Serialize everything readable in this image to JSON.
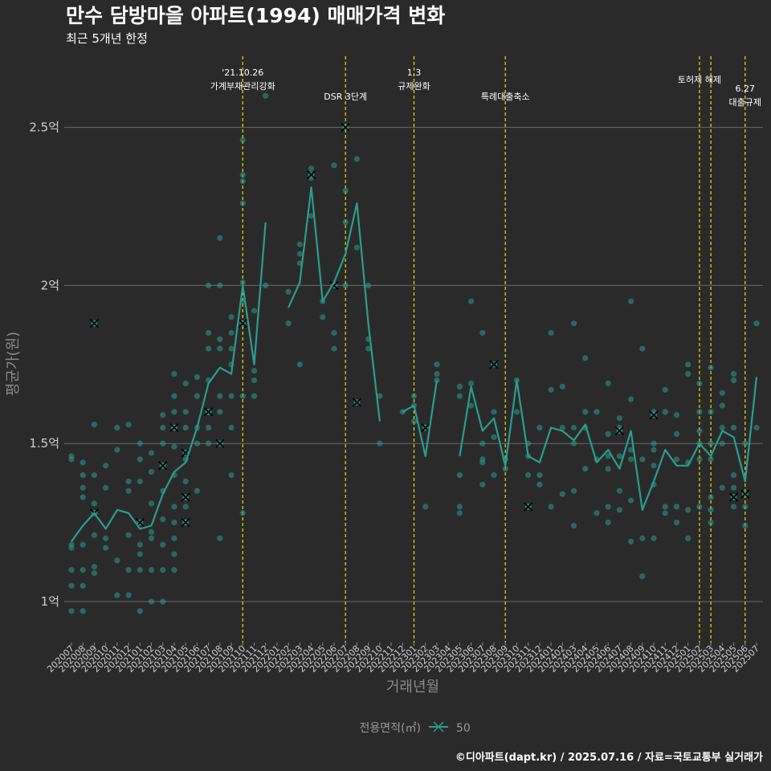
{
  "chart_data": {
    "type": "line",
    "title": "만수 담방마을 아파트(1994) 매매가격 변화",
    "subtitle": "최근 5개년 한정",
    "xlabel": "거래년월",
    "ylabel": "평균가(원)",
    "caption": "©디아파트(dapt.kr) / 2025.07.16 / 자료=국토교통부 실거래가",
    "legend": {
      "title": "전용면적(㎡)",
      "label": "50",
      "position": "bottom"
    },
    "colors": {
      "background": "#2b2a2b",
      "series": "#2a9d8f",
      "grid": "#6a6a6a",
      "event_line": "#e8e000",
      "outlier_marker": "#000000"
    },
    "ylim": [
      0.88,
      2.66
    ],
    "yticks": [
      {
        "value": 1.0,
        "label": "1억"
      },
      {
        "value": 1.5,
        "label": "1.5억"
      },
      {
        "value": 2.0,
        "label": "2억"
      },
      {
        "value": 2.5,
        "label": "2.5억"
      }
    ],
    "x": [
      "202007",
      "202008",
      "202009",
      "202010",
      "202011",
      "202012",
      "202101",
      "202102",
      "202103",
      "202104",
      "202105",
      "202106",
      "202107",
      "202108",
      "202109",
      "202110",
      "202111",
      "202112",
      "202201",
      "202202",
      "202203",
      "202204",
      "202205",
      "202206",
      "202207",
      "202208",
      "202209",
      "202210",
      "202211",
      "202212",
      "202301",
      "202302",
      "202303",
      "202304",
      "202305",
      "202306",
      "202307",
      "202308",
      "202309",
      "202310",
      "202311",
      "202312",
      "202401",
      "202402",
      "202403",
      "202404",
      "202405",
      "202406",
      "202407",
      "202408",
      "202409",
      "202410",
      "202411",
      "202412",
      "202501",
      "202502",
      "202503",
      "202504",
      "202505",
      "202506",
      "202507"
    ],
    "series": [
      {
        "name": "50",
        "values": [
          1.19,
          1.24,
          1.28,
          1.23,
          1.29,
          1.28,
          1.23,
          1.24,
          1.34,
          1.41,
          1.44,
          1.55,
          1.69,
          1.74,
          1.72,
          2.0,
          1.75,
          2.2,
          null,
          1.93,
          2.01,
          2.31,
          1.95,
          2.01,
          2.1,
          2.26,
          1.88,
          1.57,
          null,
          1.6,
          1.62,
          1.46,
          1.7,
          null,
          1.46,
          1.68,
          1.54,
          1.58,
          1.43,
          1.7,
          1.46,
          1.44,
          1.55,
          1.54,
          1.51,
          1.56,
          1.44,
          1.48,
          1.42,
          1.54,
          1.29,
          1.38,
          1.48,
          1.43,
          1.43,
          1.5,
          1.46,
          1.54,
          1.52,
          1.38,
          1.71
        ]
      }
    ],
    "scatter_points": [
      [
        "202007",
        1.17
      ],
      [
        "202007",
        1.1
      ],
      [
        "202007",
        0.97
      ],
      [
        "202007",
        1.05
      ],
      [
        "202007",
        1.18
      ],
      [
        "202007",
        1.45
      ],
      [
        "202007",
        1.46
      ],
      [
        "202008",
        1.4
      ],
      [
        "202008",
        1.36
      ],
      [
        "202008",
        1.44
      ],
      [
        "202008",
        1.18
      ],
      [
        "202008",
        1.1
      ],
      [
        "202008",
        0.97
      ],
      [
        "202008",
        1.05
      ],
      [
        "202008",
        1.33
      ],
      [
        "202009",
        1.56
      ],
      [
        "202009",
        1.4
      ],
      [
        "202009",
        1.31
      ],
      [
        "202009",
        1.21
      ],
      [
        "202009",
        1.11
      ],
      [
        "202009",
        1.09
      ],
      [
        "202010",
        1.43
      ],
      [
        "202010",
        1.36
      ],
      [
        "202010",
        1.2
      ],
      [
        "202010",
        1.17
      ],
      [
        "202011",
        1.55
      ],
      [
        "202011",
        1.48
      ],
      [
        "202011",
        1.13
      ],
      [
        "202011",
        1.02
      ],
      [
        "202012",
        1.56
      ],
      [
        "202012",
        1.38
      ],
      [
        "202012",
        1.35
      ],
      [
        "202012",
        1.21
      ],
      [
        "202012",
        1.1
      ],
      [
        "202012",
        1.02
      ],
      [
        "202101",
        1.5
      ],
      [
        "202101",
        1.45
      ],
      [
        "202101",
        1.38
      ],
      [
        "202101",
        1.25
      ],
      [
        "202101",
        1.18
      ],
      [
        "202101",
        1.15
      ],
      [
        "202101",
        1.1
      ],
      [
        "202101",
        0.97
      ],
      [
        "202102",
        1.47
      ],
      [
        "202102",
        1.41
      ],
      [
        "202102",
        1.31
      ],
      [
        "202102",
        1.22
      ],
      [
        "202102",
        1.2
      ],
      [
        "202102",
        1.1
      ],
      [
        "202102",
        1.0
      ],
      [
        "202103",
        1.59
      ],
      [
        "202103",
        1.55
      ],
      [
        "202103",
        1.5
      ],
      [
        "202103",
        1.43
      ],
      [
        "202103",
        1.35
      ],
      [
        "202103",
        1.26
      ],
      [
        "202103",
        1.18
      ],
      [
        "202103",
        1.1
      ],
      [
        "202103",
        1.0
      ],
      [
        "202104",
        1.72
      ],
      [
        "202104",
        1.65
      ],
      [
        "202104",
        1.6
      ],
      [
        "202104",
        1.55
      ],
      [
        "202104",
        1.49
      ],
      [
        "202104",
        1.4
      ],
      [
        "202104",
        1.3
      ],
      [
        "202104",
        1.25
      ],
      [
        "202104",
        1.2
      ],
      [
        "202104",
        1.15
      ],
      [
        "202104",
        1.1
      ],
      [
        "202105",
        1.69
      ],
      [
        "202105",
        1.6
      ],
      [
        "202105",
        1.55
      ],
      [
        "202105",
        1.45
      ],
      [
        "202105",
        1.38
      ],
      [
        "202105",
        1.3
      ],
      [
        "202105",
        1.25
      ],
      [
        "202106",
        1.71
      ],
      [
        "202106",
        1.65
      ],
      [
        "202106",
        1.55
      ],
      [
        "202106",
        1.5
      ],
      [
        "202106",
        1.35
      ],
      [
        "202107",
        2.0
      ],
      [
        "202107",
        1.85
      ],
      [
        "202107",
        1.8
      ],
      [
        "202107",
        1.7
      ],
      [
        "202107",
        1.6
      ],
      [
        "202107",
        1.55
      ],
      [
        "202107",
        1.5
      ],
      [
        "202108",
        2.15
      ],
      [
        "202108",
        2.0
      ],
      [
        "202108",
        1.83
      ],
      [
        "202108",
        1.8
      ],
      [
        "202108",
        1.65
      ],
      [
        "202108",
        1.6
      ],
      [
        "202108",
        1.2
      ],
      [
        "202109",
        1.9
      ],
      [
        "202109",
        1.85
      ],
      [
        "202109",
        1.8
      ],
      [
        "202109",
        1.75
      ],
      [
        "202109",
        1.65
      ],
      [
        "202109",
        1.55
      ],
      [
        "202109",
        1.4
      ],
      [
        "202110",
        2.46
      ],
      [
        "202110",
        2.35
      ],
      [
        "202110",
        2.33
      ],
      [
        "202110",
        2.26
      ],
      [
        "202110",
        2.01
      ],
      [
        "202110",
        1.95
      ],
      [
        "202110",
        1.65
      ],
      [
        "202110",
        1.28
      ],
      [
        "202111",
        1.92
      ],
      [
        "202111",
        1.73
      ],
      [
        "202111",
        1.7
      ],
      [
        "202111",
        1.65
      ],
      [
        "202112",
        2.6
      ],
      [
        "202112",
        2.0
      ],
      [
        "202202",
        1.98
      ],
      [
        "202202",
        1.88
      ],
      [
        "202203",
        2.13
      ],
      [
        "202203",
        2.1
      ],
      [
        "202203",
        2.07
      ],
      [
        "202203",
        1.75
      ],
      [
        "202204",
        2.37
      ],
      [
        "202204",
        2.34
      ],
      [
        "202204",
        2.22
      ],
      [
        "202205",
        1.95
      ],
      [
        "202205",
        1.9
      ],
      [
        "202206",
        2.38
      ],
      [
        "202206",
        1.85
      ],
      [
        "202206",
        1.8
      ],
      [
        "202207",
        2.3
      ],
      [
        "202207",
        2.2
      ],
      [
        "202207",
        2.0
      ],
      [
        "202208",
        2.4
      ],
      [
        "202208",
        2.12
      ],
      [
        "202209",
        2.0
      ],
      [
        "202209",
        1.83
      ],
      [
        "202209",
        1.8
      ],
      [
        "202210",
        1.65
      ],
      [
        "202210",
        1.5
      ],
      [
        "202212",
        1.6
      ],
      [
        "202301",
        1.65
      ],
      [
        "202301",
        1.62
      ],
      [
        "202301",
        1.57
      ],
      [
        "202302",
        1.3
      ],
      [
        "202303",
        1.75
      ],
      [
        "202303",
        1.72
      ],
      [
        "202303",
        1.7
      ],
      [
        "202305",
        1.68
      ],
      [
        "202305",
        1.65
      ],
      [
        "202305",
        1.4
      ],
      [
        "202305",
        1.3
      ],
      [
        "202305",
        1.28
      ],
      [
        "202306",
        1.95
      ],
      [
        "202306",
        1.69
      ],
      [
        "202306",
        1.62
      ],
      [
        "202307",
        1.85
      ],
      [
        "202307",
        1.5
      ],
      [
        "202307",
        1.45
      ],
      [
        "202307",
        1.44
      ],
      [
        "202307",
        1.37
      ],
      [
        "202308",
        1.6
      ],
      [
        "202308",
        1.52
      ],
      [
        "202308",
        1.4
      ],
      [
        "202309",
        1.45
      ],
      [
        "202309",
        1.42
      ],
      [
        "202310",
        1.7
      ],
      [
        "202310",
        1.6
      ],
      [
        "202311",
        1.5
      ],
      [
        "202311",
        1.46
      ],
      [
        "202311",
        1.4
      ],
      [
        "202312",
        1.55
      ],
      [
        "202312",
        1.4
      ],
      [
        "202312",
        1.37
      ],
      [
        "202401",
        1.85
      ],
      [
        "202401",
        1.67
      ],
      [
        "202401",
        1.3
      ],
      [
        "202402",
        1.68
      ],
      [
        "202402",
        1.55
      ],
      [
        "202402",
        1.34
      ],
      [
        "202403",
        1.88
      ],
      [
        "202403",
        1.55
      ],
      [
        "202403",
        1.5
      ],
      [
        "202403",
        1.35
      ],
      [
        "202403",
        1.24
      ],
      [
        "202404",
        1.77
      ],
      [
        "202404",
        1.6
      ],
      [
        "202404",
        1.55
      ],
      [
        "202404",
        1.42
      ],
      [
        "202405",
        1.6
      ],
      [
        "202405",
        1.45
      ],
      [
        "202405",
        1.28
      ],
      [
        "202406",
        1.69
      ],
      [
        "202406",
        1.53
      ],
      [
        "202406",
        1.46
      ],
      [
        "202406",
        1.42
      ],
      [
        "202406",
        1.3
      ],
      [
        "202406",
        1.25
      ],
      [
        "202407",
        1.58
      ],
      [
        "202407",
        1.55
      ],
      [
        "202407",
        1.46
      ],
      [
        "202407",
        1.35
      ],
      [
        "202407",
        1.29
      ],
      [
        "202408",
        1.95
      ],
      [
        "202408",
        1.64
      ],
      [
        "202408",
        1.48
      ],
      [
        "202408",
        1.45
      ],
      [
        "202408",
        1.32
      ],
      [
        "202408",
        1.19
      ],
      [
        "202409",
        1.8
      ],
      [
        "202409",
        1.45
      ],
      [
        "202409",
        1.2
      ],
      [
        "202409",
        1.08
      ],
      [
        "202410",
        1.6
      ],
      [
        "202410",
        1.5
      ],
      [
        "202410",
        1.48
      ],
      [
        "202410",
        1.43
      ],
      [
        "202410",
        1.37
      ],
      [
        "202410",
        1.2
      ],
      [
        "202411",
        1.67
      ],
      [
        "202411",
        1.6
      ],
      [
        "202411",
        1.3
      ],
      [
        "202411",
        1.28
      ],
      [
        "202412",
        1.59
      ],
      [
        "202412",
        1.53
      ],
      [
        "202412",
        1.45
      ],
      [
        "202412",
        1.3
      ],
      [
        "202412",
        1.25
      ],
      [
        "202501",
        1.75
      ],
      [
        "202501",
        1.72
      ],
      [
        "202501",
        1.44
      ],
      [
        "202501",
        1.29
      ],
      [
        "202501",
        1.2
      ],
      [
        "202502",
        1.69
      ],
      [
        "202502",
        1.6
      ],
      [
        "202502",
        1.54
      ],
      [
        "202502",
        1.5
      ],
      [
        "202502",
        1.45
      ],
      [
        "202502",
        1.3
      ],
      [
        "202503",
        1.74
      ],
      [
        "202503",
        1.6
      ],
      [
        "202503",
        1.5
      ],
      [
        "202503",
        1.45
      ],
      [
        "202503",
        1.33
      ],
      [
        "202503",
        1.29
      ],
      [
        "202503",
        1.25
      ],
      [
        "202504",
        1.66
      ],
      [
        "202504",
        1.62
      ],
      [
        "202504",
        1.55
      ],
      [
        "202504",
        1.5
      ],
      [
        "202504",
        1.36
      ],
      [
        "202505",
        1.72
      ],
      [
        "202505",
        1.7
      ],
      [
        "202505",
        1.55
      ],
      [
        "202505",
        1.4
      ],
      [
        "202505",
        1.36
      ],
      [
        "202505",
        1.3
      ],
      [
        "202506",
        1.5
      ],
      [
        "202506",
        1.3
      ],
      [
        "202506",
        1.24
      ],
      [
        "202507",
        1.88
      ],
      [
        "202507",
        1.55
      ]
    ],
    "x_markers": [
      [
        "202009",
        1.88
      ],
      [
        "202009",
        1.28
      ],
      [
        "202103",
        1.43
      ],
      [
        "202104",
        1.55
      ],
      [
        "202105",
        1.47
      ],
      [
        "202105",
        1.33
      ],
      [
        "202105",
        1.25
      ],
      [
        "202101",
        1.25
      ],
      [
        "202107",
        1.6
      ],
      [
        "202108",
        1.5
      ],
      [
        "202110",
        1.88
      ],
      [
        "202204",
        2.35
      ],
      [
        "202206",
        2.0
      ],
      [
        "202207",
        2.5
      ],
      [
        "202208",
        1.63
      ],
      [
        "202302",
        1.55
      ],
      [
        "202308",
        1.75
      ],
      [
        "202311",
        1.3
      ],
      [
        "202407",
        1.54
      ],
      [
        "202410",
        1.59
      ],
      [
        "202505",
        1.33
      ],
      [
        "202506",
        1.34
      ]
    ],
    "annotations": [
      {
        "x": "202110",
        "lines": [
          "'21.10.26",
          "가계부채관리강화"
        ]
      },
      {
        "x": "202207",
        "lines": [
          "DSR 3단계"
        ]
      },
      {
        "x": "202301",
        "lines": [
          "1.3",
          "규제완화"
        ]
      },
      {
        "x": "202309",
        "lines": [
          "특례대출축소"
        ]
      },
      {
        "x": "202502",
        "lines": [
          "토허제 해제"
        ]
      },
      {
        "x": "202503",
        "lines": []
      },
      {
        "x": "202506",
        "lines": [
          "6.27",
          "대출규제"
        ]
      }
    ]
  }
}
